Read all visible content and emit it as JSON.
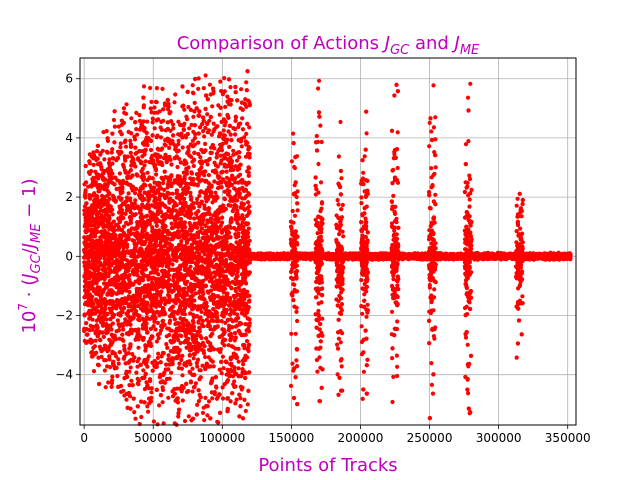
{
  "chart_data": {
    "type": "scatter",
    "title": "Comparison of Actions J_GC and J_ME",
    "title_parts": {
      "text1": "Comparison of Actions ",
      "j": "J",
      "sub1": "GC",
      "text2": " and ",
      "j2": "J",
      "sub2": "ME"
    },
    "xlabel": "Points of Tracks",
    "ylabel": "10^7 · (J_GC/J_ME − 1)",
    "ylabel_parts": {
      "base": "10",
      "exp": "7",
      "pre": " · (",
      "j1": "J",
      "sub1": "GC",
      "slash": "/",
      "j2": "J",
      "sub2": "ME",
      "post": " − 1)"
    },
    "xlim": [
      -3000,
      356000
    ],
    "ylim": [
      -5.7,
      6.7
    ],
    "xticks": [
      0,
      50000,
      100000,
      150000,
      200000,
      250000,
      300000,
      350000
    ],
    "xtick_labels": [
      "0",
      "50000",
      "100000",
      "150000",
      "200000",
      "250000",
      "300000",
      "350000"
    ],
    "yticks": [
      -4,
      -2,
      0,
      2,
      4,
      6
    ],
    "ytick_labels": [
      "−4",
      "−2",
      "0",
      "2",
      "4",
      "6"
    ],
    "grid": true,
    "colors": {
      "points": "#ff0000",
      "text": "#bf00bf",
      "grid": "#b0b0b0"
    },
    "series": [
      {
        "point_count": 17000,
        "x_range": [
          0,
          352000
        ],
        "envelope": {
          "x": [
            0,
            10000,
            30000,
            50000,
            70000,
            100000,
            130000,
            160000,
            200000,
            250000,
            300000,
            330000,
            352000
          ],
          "amplitude": [
            3.6,
            4.4,
            5.6,
            6.2,
            6.3,
            6.4,
            6.5,
            6.3,
            6.1,
            6.6,
            6.4,
            0.15,
            0.05
          ]
        },
        "clusters_x": [
          152000,
          170000,
          185000,
          203000,
          225000,
          252000,
          278000,
          315000
        ]
      }
    ]
  }
}
